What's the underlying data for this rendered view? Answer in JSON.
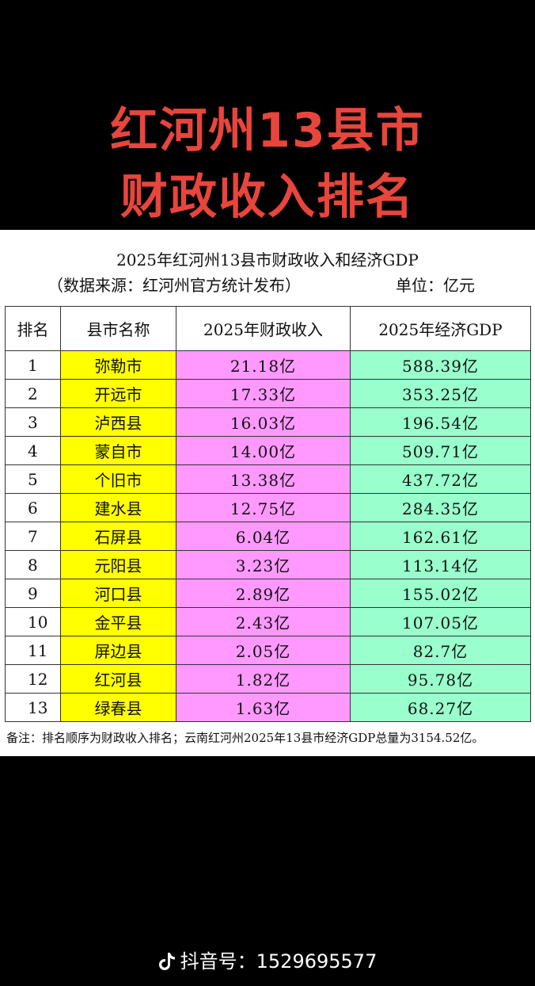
{
  "headline": {
    "line1": "红河州13县市",
    "line2": "财政收入排名"
  },
  "sheet": {
    "title": "2025年红河州13县市财政收入和经济GDP",
    "source": "（数据来源：红河州官方统计发布）",
    "unit": "单位：亿元",
    "headers": {
      "rank": "排名",
      "name": "县市名称",
      "finance": "2025年财政收入",
      "gdp": "2025年经济GDP"
    },
    "rows": [
      {
        "rank": "1",
        "name": "弥勒市",
        "finance": "21.18亿",
        "gdp": "588.39亿"
      },
      {
        "rank": "2",
        "name": "开远市",
        "finance": "17.33亿",
        "gdp": "353.25亿"
      },
      {
        "rank": "3",
        "name": "泸西县",
        "finance": "16.03亿",
        "gdp": "196.54亿"
      },
      {
        "rank": "4",
        "name": "蒙自市",
        "finance": "14.00亿",
        "gdp": "509.71亿"
      },
      {
        "rank": "5",
        "name": "个旧市",
        "finance": "13.38亿",
        "gdp": "437.72亿"
      },
      {
        "rank": "6",
        "name": "建水县",
        "finance": "12.75亿",
        "gdp": "284.35亿"
      },
      {
        "rank": "7",
        "name": "石屏县",
        "finance": "6.04亿",
        "gdp": "162.61亿"
      },
      {
        "rank": "8",
        "name": "元阳县",
        "finance": "3.23亿",
        "gdp": "113.14亿"
      },
      {
        "rank": "9",
        "name": "河口县",
        "finance": "2.89亿",
        "gdp": "155.02亿"
      },
      {
        "rank": "10",
        "name": "金平县",
        "finance": "2.43亿",
        "gdp": "107.05亿"
      },
      {
        "rank": "11",
        "name": "屏边县",
        "finance": "2.05亿",
        "gdp": "82.7亿"
      },
      {
        "rank": "12",
        "name": "红河县",
        "finance": "1.82亿",
        "gdp": "95.78亿"
      },
      {
        "rank": "13",
        "name": "绿春县",
        "finance": "1.63亿",
        "gdp": "68.27亿"
      }
    ],
    "note": "备注：排名顺序为财政收入排名；云南红河州2025年13县市经济GDP总量为3154.52亿。"
  },
  "footer": {
    "icon": "douyin-note-icon",
    "text": "抖音号：1529695577"
  },
  "colors": {
    "headline": "#e8453c",
    "name_cell": "#ffff00",
    "finance_cell": "#ff99ff",
    "gdp_cell": "#99ffcc"
  }
}
